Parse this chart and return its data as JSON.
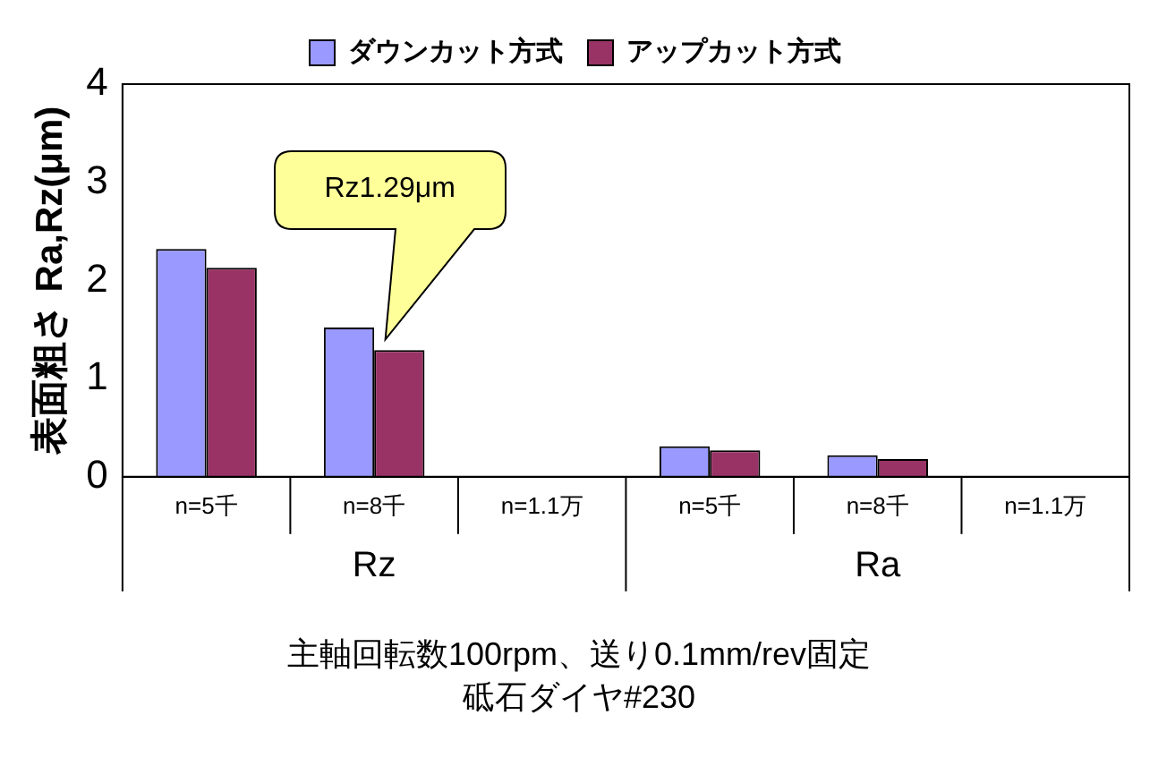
{
  "chart_data": {
    "type": "bar",
    "ylabel": "表面粗さ Ra,Rz(μm)",
    "categories": [
      "n=5千",
      "n=8千",
      "n=1.1万",
      "n=5千",
      "n=8千",
      "n=1.1万"
    ],
    "series": [
      {
        "name": "ダウンカット方式",
        "color": "#9999ff",
        "values": [
          2.32,
          1.52,
          null,
          0.31,
          0.22,
          null
        ]
      },
      {
        "name": "アップカット方式",
        "color": "#993366",
        "values": [
          2.13,
          1.29,
          null,
          0.27,
          0.18,
          null
        ]
      }
    ],
    "ylim": [
      0,
      4
    ],
    "yticks": [
      0,
      1,
      2,
      3,
      4
    ],
    "grid": false,
    "legend": "top",
    "annotations": [
      "Rz1.29μm",
      "Rz",
      "Ra",
      "主軸回転数100rpm、送り0.1mm/rev固定",
      "砥石ダイヤ#230"
    ]
  }
}
